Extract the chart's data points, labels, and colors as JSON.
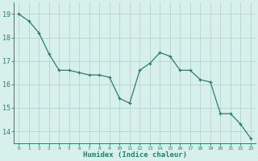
{
  "x": [
    0,
    1,
    2,
    3,
    4,
    5,
    6,
    7,
    8,
    9,
    10,
    11,
    12,
    13,
    14,
    15,
    16,
    17,
    18,
    19,
    20,
    21,
    22,
    23
  ],
  "y": [
    19.0,
    18.7,
    18.2,
    17.3,
    16.6,
    16.6,
    16.5,
    16.4,
    16.4,
    16.3,
    15.4,
    15.2,
    16.6,
    16.9,
    17.35,
    17.2,
    16.6,
    16.6,
    16.2,
    16.1,
    14.75,
    14.75,
    14.3,
    13.7
  ],
  "line_color": "#2a7d6e",
  "marker": "+",
  "background_color": "#d8f0ec",
  "grid_color": "#b8d8d4",
  "xlabel": "Humidex (Indice chaleur)",
  "xlabel_color": "#2a7d6e",
  "tick_color": "#2a7d6e",
  "ylim": [
    13.5,
    19.5
  ],
  "xlim": [
    -0.5,
    23.5
  ],
  "yticks": [
    14,
    15,
    16,
    17,
    18,
    19
  ],
  "xticks": [
    0,
    1,
    2,
    3,
    4,
    5,
    6,
    7,
    8,
    9,
    10,
    11,
    12,
    13,
    14,
    15,
    16,
    17,
    18,
    19,
    20,
    21,
    22,
    23
  ]
}
